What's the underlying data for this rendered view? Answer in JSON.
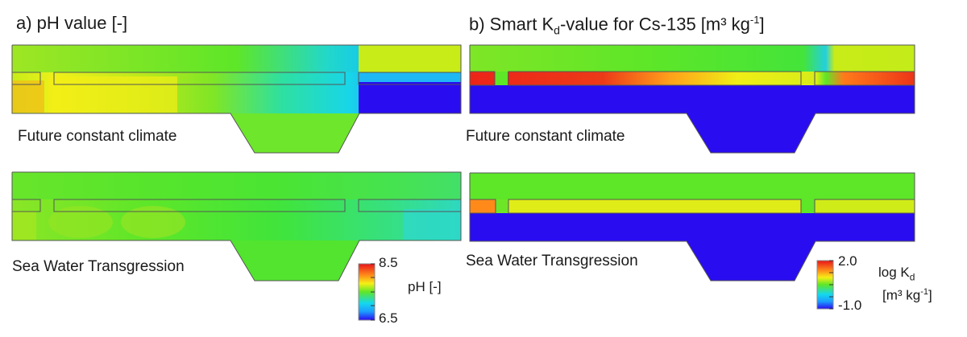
{
  "panels": {
    "a": {
      "label": "a) pH value [-]",
      "colorbar": {
        "max": "8.5",
        "min": "6.5",
        "unit": "pH [-]"
      }
    },
    "b": {
      "label_prefix": "b) Smart K",
      "label_sub": "d",
      "label_mid": "-value for Cs-135 [m³ kg",
      "label_sup": "-1",
      "label_suffix": "]",
      "colorbar": {
        "max": "2.0",
        "min": "-1.0",
        "unit_prefix": "log K",
        "unit_sub": "d",
        "unit2_prefix": "[m³ kg",
        "unit2_sup": "-1",
        "unit2_suffix": "]"
      }
    }
  },
  "scenarios": {
    "top": "Future constant climate",
    "bottom": "Sea Water Transgression"
  },
  "colors": {
    "red": "#e8141a",
    "orange": "#ff8a1a",
    "yellow": "#f5ef16",
    "yellow_green": "#b4e81c",
    "green": "#5ee628",
    "cyan": "#14d8ee",
    "light_blue": "#1c9cff",
    "blue": "#2a0cf0"
  }
}
